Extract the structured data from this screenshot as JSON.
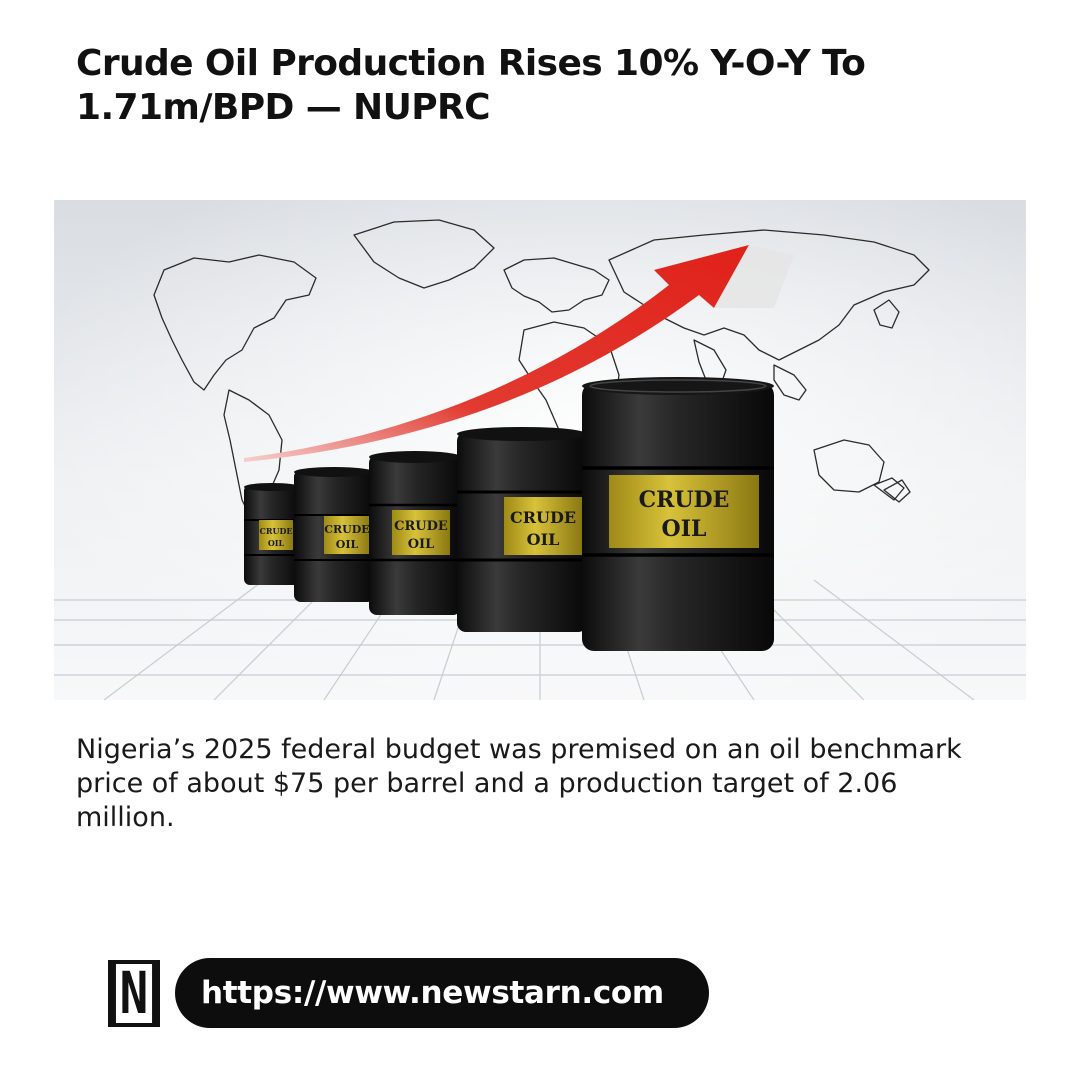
{
  "article": {
    "headline": "Crude Oil Production Rises 10% Y-O-Y To 1.71m/BPD — NUPRC",
    "summary": "Nigeria’s 2025 federal budget was premised on an oil benchmark price of about $75 per barrel and a production target of 2.06 million."
  },
  "image": {
    "barrel_label_line1": "CRUDE",
    "barrel_label_line2": "OIL"
  },
  "brand": {
    "logo_letter": "N",
    "url": "https://www.newstarn.com"
  },
  "colors": {
    "headline": "#111111",
    "pill_background": "#0d0d0d",
    "pill_text": "#ffffff",
    "arrow": "#e0211a",
    "barrel": "#1c1c1c",
    "barrel_label": "#c9b22a"
  }
}
